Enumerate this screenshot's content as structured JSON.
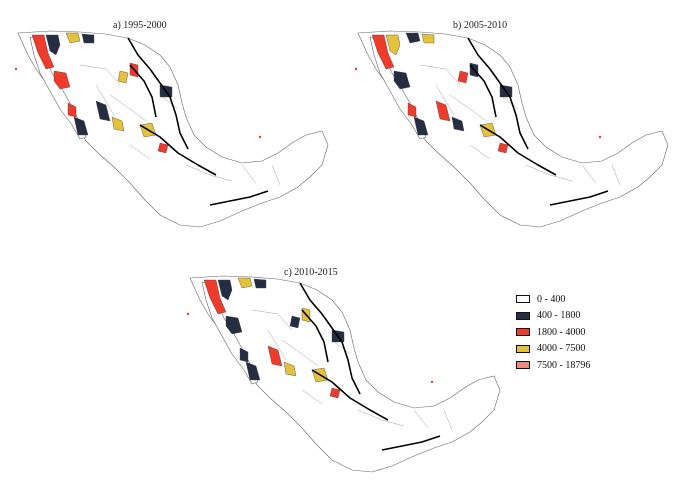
{
  "colors": {
    "class0": "#ffffff",
    "class1": "#252d42",
    "class2": "#ee3b2b",
    "class3": "#e4c23b",
    "class4": "#f08a7e"
  },
  "maps": [
    {
      "title": "a) 1995-2000",
      "regions": [
        {
          "name": "baja-norte-west",
          "class": 2
        },
        {
          "name": "baja-norte-east",
          "class": 1
        },
        {
          "name": "sonora-border-a",
          "class": 3
        },
        {
          "name": "sonora-border-b",
          "class": 1
        },
        {
          "name": "chihuahua-a",
          "class": 2
        },
        {
          "name": "chihuahua-b",
          "class": 3
        },
        {
          "name": "sonora-coast-a",
          "class": 2
        },
        {
          "name": "sinaloa-a",
          "class": 1
        },
        {
          "name": "sinaloa-b",
          "class": 3
        },
        {
          "name": "durango-a",
          "class": 3
        },
        {
          "name": "baja-sur-a",
          "class": 1
        },
        {
          "name": "baja-sur-b",
          "class": 2
        },
        {
          "name": "coahuila-a",
          "class": 1
        },
        {
          "name": "interior-a",
          "class": 2
        }
      ]
    },
    {
      "title": "b) 2005-2010",
      "regions": [
        {
          "name": "baja-norte-west",
          "class": 2
        },
        {
          "name": "baja-norte-east",
          "class": 3
        },
        {
          "name": "sonora-border-a",
          "class": 1
        },
        {
          "name": "sonora-border-b",
          "class": 3
        },
        {
          "name": "chihuahua-a",
          "class": 1
        },
        {
          "name": "chihuahua-b",
          "class": 2
        },
        {
          "name": "sonora-coast-a",
          "class": 1
        },
        {
          "name": "sinaloa-a",
          "class": 2
        },
        {
          "name": "sinaloa-b",
          "class": 1
        },
        {
          "name": "durango-a",
          "class": 3
        },
        {
          "name": "baja-sur-a",
          "class": 1
        },
        {
          "name": "baja-sur-b",
          "class": 2
        },
        {
          "name": "coahuila-a",
          "class": 1
        },
        {
          "name": "interior-a",
          "class": 2
        }
      ]
    },
    {
      "title": "c) 2010-2015",
      "regions": [
        {
          "name": "baja-norte-west",
          "class": 2
        },
        {
          "name": "baja-norte-east",
          "class": 1
        },
        {
          "name": "sonora-border-a",
          "class": 3
        },
        {
          "name": "sonora-border-b",
          "class": 1
        },
        {
          "name": "chihuahua-a",
          "class": 3
        },
        {
          "name": "chihuahua-b",
          "class": 1
        },
        {
          "name": "sonora-coast-a",
          "class": 1
        },
        {
          "name": "sinaloa-a",
          "class": 2
        },
        {
          "name": "sinaloa-b",
          "class": 3
        },
        {
          "name": "durango-a",
          "class": 3
        },
        {
          "name": "baja-sur-a",
          "class": 1
        },
        {
          "name": "baja-sur-b",
          "class": 1
        },
        {
          "name": "coahuila-a",
          "class": 1
        },
        {
          "name": "interior-a",
          "class": 2
        }
      ]
    }
  ],
  "legend": {
    "items": [
      {
        "label": "0 - 400",
        "color": "#ffffff"
      },
      {
        "label": "400 - 1800",
        "color": "#252d42"
      },
      {
        "label": "1800 - 4000",
        "color": "#ee3b2b"
      },
      {
        "label": "4000 - 7500",
        "color": "#e4c23b"
      },
      {
        "label": "7500 - 18796",
        "color": "#f08a7e"
      }
    ]
  }
}
